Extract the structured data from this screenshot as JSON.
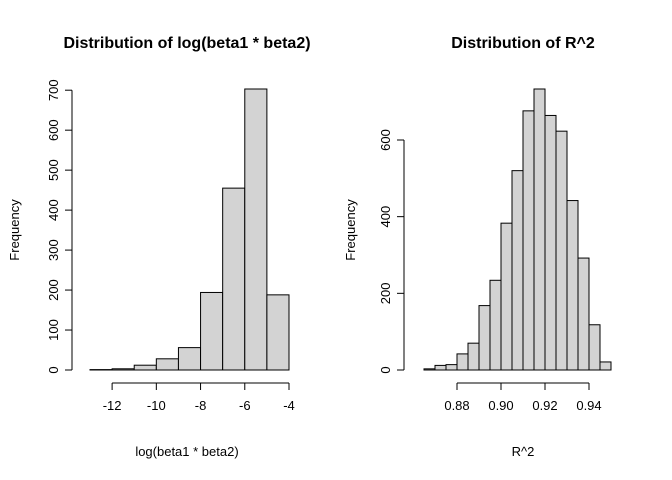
{
  "chart_data": [
    {
      "type": "bar",
      "subtype": "histogram",
      "title": "Distribution of log(beta1 * beta2)",
      "xlabel": "log(beta1 * beta2)",
      "ylabel": "Frequency",
      "bin_edges": [
        -13,
        -12,
        -11,
        -10,
        -9,
        -8,
        -7,
        -6,
        -5,
        -4
      ],
      "values": [
        1,
        3,
        12,
        28,
        56,
        194,
        455,
        703,
        188
      ],
      "xticks": [
        -12,
        -10,
        -8,
        -6,
        -4
      ],
      "xtick_labels": [
        "-12",
        "-10",
        "-8",
        "-6",
        "-4"
      ],
      "yticks": [
        0,
        100,
        200,
        300,
        400,
        500,
        600,
        700
      ],
      "ytick_labels": [
        "0",
        "100",
        "200",
        "300",
        "400",
        "500",
        "600",
        "700"
      ],
      "xlim": [
        -13,
        -4
      ],
      "ylim": [
        0,
        703
      ],
      "bar_color": "#d3d3d3",
      "grid": false
    },
    {
      "type": "bar",
      "subtype": "histogram",
      "title": "Distribution of R^2",
      "xlabel": "R^2",
      "ylabel": "Frequency",
      "bin_edges": [
        0.865,
        0.87,
        0.875,
        0.88,
        0.885,
        0.89,
        0.895,
        0.9,
        0.905,
        0.91,
        0.915,
        0.92,
        0.925,
        0.93,
        0.935,
        0.94,
        0.945,
        0.95
      ],
      "values": [
        3,
        12,
        14,
        42,
        70,
        168,
        234,
        383,
        520,
        676,
        733,
        664,
        623,
        442,
        292,
        118,
        21
      ],
      "xticks": [
        0.88,
        0.9,
        0.92,
        0.94
      ],
      "xtick_labels": [
        "0.88",
        "0.90",
        "0.92",
        "0.94"
      ],
      "yticks": [
        0,
        200,
        400,
        600
      ],
      "ytick_labels": [
        "0",
        "200",
        "400",
        "600"
      ],
      "xlim": [
        0.865,
        0.95
      ],
      "ylim": [
        0,
        733
      ],
      "bar_color": "#d3d3d3",
      "grid": false
    }
  ]
}
